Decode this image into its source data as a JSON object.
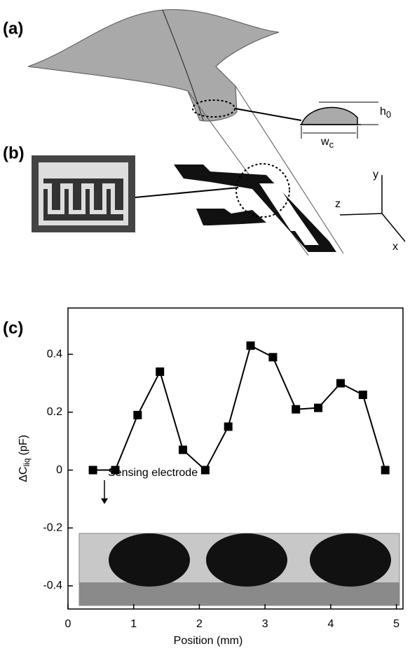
{
  "diagram": {
    "panel_a": "(a)",
    "panel_b": "(b)",
    "panel_c": "(c)",
    "height_label": {
      "main": "h",
      "sub": "0"
    },
    "width_label": {
      "main": "w",
      "sub": "c"
    },
    "axis_y": "y",
    "axis_z": "z",
    "axis_x": "x"
  },
  "chart_data": {
    "type": "line",
    "x_label": "Position (mm)",
    "y_label": {
      "main": "ΔC",
      "sub": "liq",
      "unit": "(pF)"
    },
    "annotation": "Sensing electrode",
    "x": [
      0.38,
      0.72,
      1.06,
      1.4,
      1.75,
      2.09,
      2.44,
      2.78,
      3.12,
      3.47,
      3.81,
      4.15,
      4.49,
      4.83
    ],
    "series": [
      {
        "name": "ΔC",
        "color": "#000000",
        "values": [
          0,
          0,
          0.19,
          0.34,
          0.07,
          0,
          0.15,
          0.43,
          0.39,
          0.21,
          0.215,
          0.3,
          0.26,
          0
        ]
      }
    ],
    "xlim": [
      0,
      5.1
    ],
    "ylim": [
      -0.48,
      0.56
    ],
    "xticks": [
      0,
      1,
      2,
      3,
      4,
      5
    ],
    "yticks": [
      -0.4,
      -0.2,
      0,
      0.2,
      0.4
    ],
    "grid": false
  }
}
